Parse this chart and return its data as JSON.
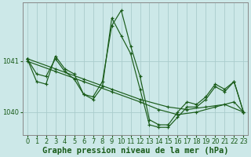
{
  "bg_color": "#cce8e8",
  "grid_color": "#aacccc",
  "line_color": "#1a5c1a",
  "xlabel": "Graphe pression niveau de la mer (hPa)",
  "xlabel_fontsize": 7.5,
  "tick_fontsize": 6.0,
  "ylim": [
    1039.55,
    1042.15
  ],
  "yticks": [
    1040,
    1041
  ],
  "xlim": [
    -0.5,
    23.5
  ],
  "xticks": [
    0,
    1,
    2,
    3,
    4,
    5,
    6,
    7,
    8,
    9,
    10,
    11,
    12,
    13,
    14,
    15,
    16,
    17,
    18,
    19,
    20,
    21,
    22,
    23
  ],
  "series": [
    {
      "x": [
        0,
        3,
        6,
        9,
        12,
        15,
        17,
        19,
        21,
        23
      ],
      "y": [
        1041.05,
        1040.85,
        1040.65,
        1040.45,
        1040.25,
        1040.1,
        1040.05,
        1040.1,
        1040.15,
        1040.0
      ]
    },
    {
      "x": [
        0,
        3,
        6,
        9,
        12,
        14,
        16,
        18,
        20,
        22,
        23
      ],
      "y": [
        1041.0,
        1040.8,
        1040.6,
        1040.4,
        1040.2,
        1040.05,
        1039.95,
        1040.0,
        1040.1,
        1040.2,
        1040.0
      ]
    },
    {
      "x": [
        0,
        1,
        2,
        3,
        4,
        5,
        6,
        7,
        8,
        9,
        10,
        11,
        12,
        13,
        14,
        15,
        16,
        17,
        18,
        19,
        20,
        21,
        22,
        23
      ],
      "y": [
        1041.05,
        1040.6,
        1040.55,
        1041.1,
        1040.85,
        1040.75,
        1040.35,
        1040.25,
        1040.5,
        1041.85,
        1041.5,
        1041.15,
        1040.45,
        1039.75,
        1039.7,
        1039.7,
        1039.9,
        1040.1,
        1040.1,
        1040.25,
        1040.5,
        1040.4,
        1040.6,
        1040.0
      ]
    },
    {
      "x": [
        0,
        1,
        2,
        3,
        4,
        5,
        6,
        7,
        8,
        9,
        10,
        11,
        12,
        13,
        14,
        15,
        16,
        17,
        18,
        19,
        20,
        21,
        22,
        23
      ],
      "y": [
        1041.05,
        1040.75,
        1040.7,
        1041.05,
        1040.8,
        1040.65,
        1040.35,
        1040.3,
        1040.6,
        1041.7,
        1042.0,
        1041.3,
        1040.7,
        1039.85,
        1039.75,
        1039.75,
        1040.0,
        1040.2,
        1040.15,
        1040.3,
        1040.55,
        1040.45,
        1040.6,
        1040.0
      ]
    }
  ]
}
